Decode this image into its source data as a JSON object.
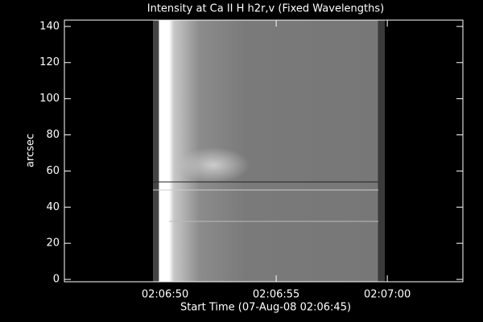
{
  "chart_data": {
    "type": "image",
    "title": "Intensity at Ca II H h2r,v (Fixed Wavelengths)",
    "x_label": "Start Time (07-Aug-08 02:06:45)",
    "y_label": "arcsec",
    "xlim": [
      0.47,
      18.4
    ],
    "xticks": [
      {
        "value": 5,
        "label": "02:06:50"
      },
      {
        "value": 10,
        "label": "02:06:55"
      },
      {
        "value": 15,
        "label": "02:07:00"
      }
    ],
    "ylim": [
      -1.3,
      143.5
    ],
    "yticks": [
      0,
      20,
      40,
      60,
      80,
      100,
      120,
      140
    ]
  }
}
